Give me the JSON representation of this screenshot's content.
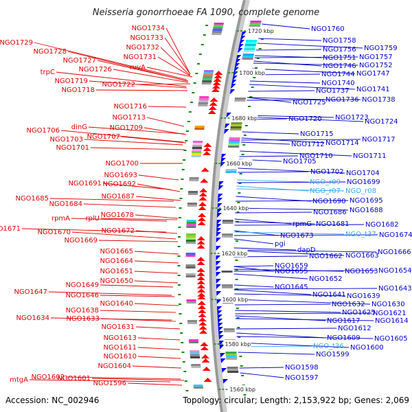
{
  "title": "Neisseria gonorrhoeae FA 1090, complete genome",
  "footer": {
    "accession": "Accession: NC_002946",
    "topology": "Topology: circular; Length: 2,153,922 bp; Genes: 2,069"
  },
  "colors": {
    "left_label": "#dd0000",
    "right_label": "#0000cc",
    "rna_label": "#33aaee",
    "axis": "#999999",
    "tick_mark": "#118811"
  },
  "ticks": [
    "1720 kbp",
    "1700 kbp",
    "1680 kbp",
    "1660 kbp",
    "1640 kbp",
    "1620 kbp",
    "1600 kbp",
    "1580 kbp",
    "1560 kbp"
  ],
  "left_labels": [
    "NGO1734",
    "NGO1733",
    "NGO1732",
    "NGO1729",
    "NGO1728",
    "NGO1731",
    "NGO1727",
    "NGO1726",
    "ruvA",
    "trpC",
    "NGO1719",
    "NGO1722",
    "NGO1718",
    "NGO1716",
    "NGO1713",
    "dinG",
    "NGO1709",
    "NGO1706",
    "NGO1707",
    "NGO1703",
    "NGO1701",
    "NGO1700",
    "NGO1693",
    "NGO1691",
    "NGO1692",
    "NGO1687",
    "NGO1685",
    "NGO1684",
    "NGO1678",
    "rpmA",
    "rplU",
    "NGO1671",
    "NGO1672",
    "NGO1670",
    "NGO1669",
    "NGO1665",
    "NGO1664",
    "NGO1651",
    "NGO1650",
    "NGO1649",
    "NGO1647",
    "NGO1646",
    "NGO1640",
    "NGO1638",
    "NGO1634",
    "NGO1633",
    "NGO1631",
    "NGO1613",
    "NGO1611",
    "NGO1610",
    "NGO1604",
    "mtgA",
    "NGO1602",
    "NGO1601",
    "NGO1596"
  ],
  "right_labels": [
    "NGO1760",
    "NGO1758",
    "NGO1756",
    "NGO1759",
    "NGO1751",
    "NGO1757",
    "NGO1746",
    "NGO1752",
    "NGO1744",
    "NGO1747",
    "NGO1740",
    "NGO1737",
    "NGO1741",
    "NGO1736",
    "NGO1738",
    "NGO1725",
    "NGO1723",
    "NGO1720",
    "NGO1724",
    "NGO1715",
    "NGO1717",
    "NGO1714",
    "NGO1712",
    "NGO1710",
    "NGO1711",
    "NGO1705",
    "NGO1702",
    "NGO1704",
    "NGO_r09",
    "NGO1699",
    "NGO_r07",
    "NGO_r08",
    "NGO1695",
    "NGO1690",
    "NGO1688",
    "NGO1686",
    "rpmG",
    "NGO1681",
    "NGO1682",
    "NGO1673",
    "NGO_t37",
    "NGO1674",
    "pgi",
    "dapD",
    "NGO1662",
    "NGO1663",
    "NGO1666",
    "NGO1659",
    "NGO1655",
    "NGO1653",
    "NGO1654",
    "NGO1652",
    "NGO1645",
    "NGO1643",
    "NGO1641",
    "NGO1639",
    "NGO1632",
    "NGO1630",
    "NGO1625",
    "NGO1621",
    "NGO1617",
    "NGO1614",
    "NGO1612",
    "NGO1609",
    "NGO1605",
    "NGO_t36",
    "NGO1600",
    "NGO1599",
    "NGO1598",
    "NGO1597"
  ]
}
